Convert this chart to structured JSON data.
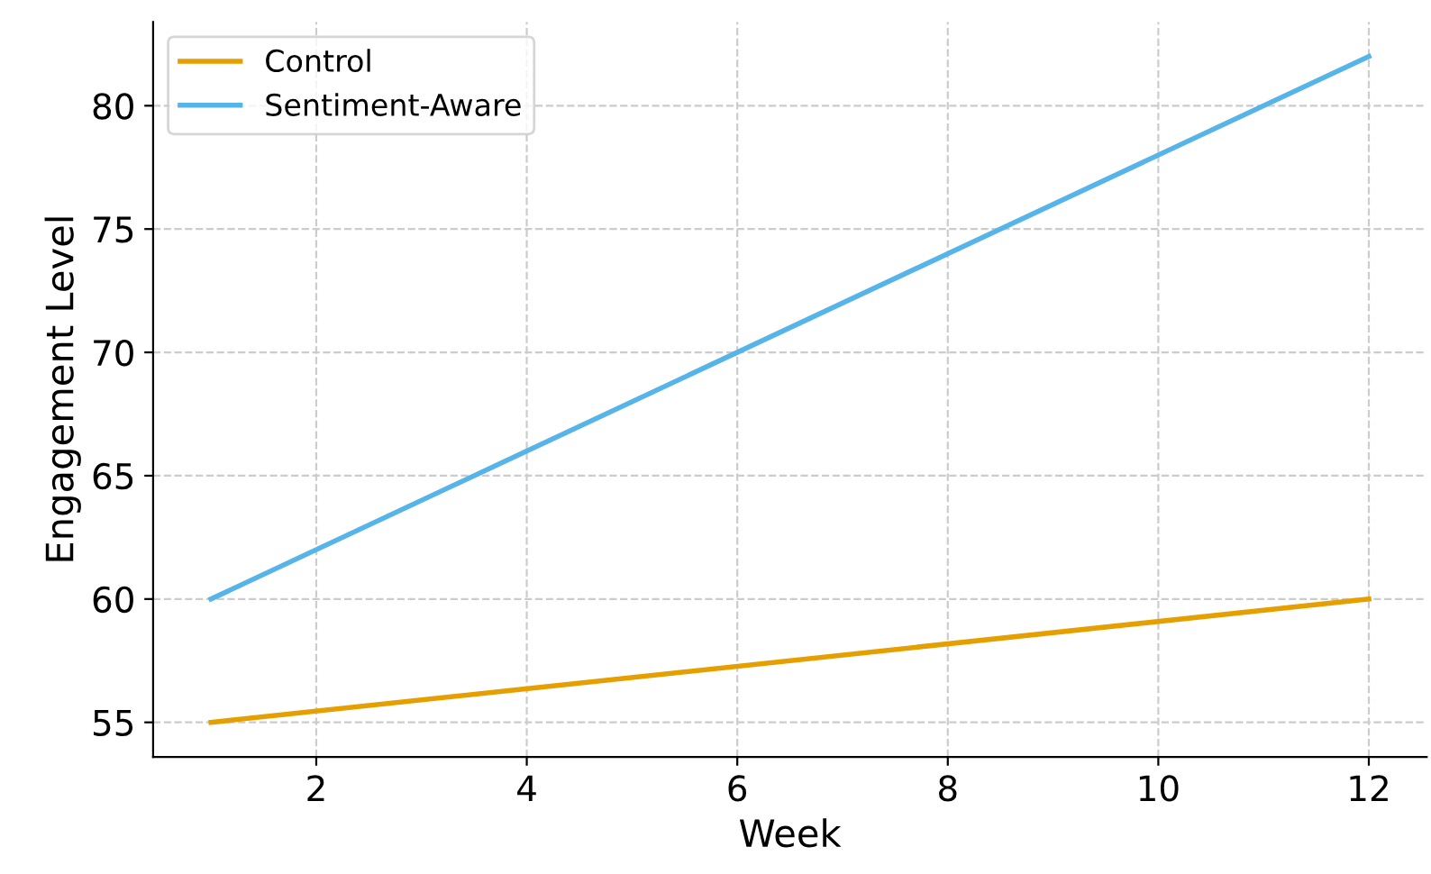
{
  "chart_data": {
    "type": "line",
    "xlabel": "Week",
    "ylabel": "Engagement Level",
    "series": [
      {
        "name": "Control",
        "color": "#e69f00",
        "values": [
          55,
          60
        ]
      },
      {
        "name": "Sentiment-Aware",
        "color": "#56b4e9",
        "values": [
          60,
          82
        ]
      }
    ],
    "x": [
      1,
      12
    ],
    "xlim": [
      0.45,
      12.55
    ],
    "xticks": [
      2,
      4,
      6,
      8,
      10,
      12
    ],
    "ylim": [
      53.6,
      83.4
    ],
    "yticks": [
      55,
      60,
      65,
      70,
      75,
      80
    ],
    "grid": true,
    "legend": "top left",
    "line_style": "solid",
    "marker": "none"
  }
}
